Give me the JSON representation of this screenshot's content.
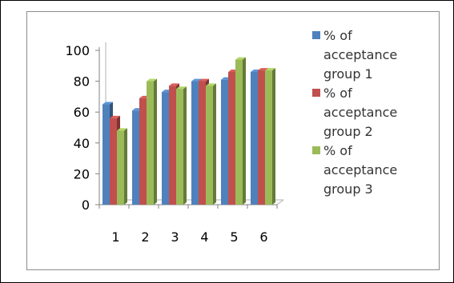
{
  "chart_data": {
    "type": "bar",
    "style": "3d-clustered-column",
    "categories": [
      "1",
      "2",
      "3",
      "4",
      "5",
      "6"
    ],
    "series": [
      {
        "name": "% of acceptance group 1",
        "color": "#4f81bd",
        "values": [
          65,
          61,
          73,
          80,
          81,
          86
        ]
      },
      {
        "name": "% of acceptance group 2",
        "color": "#c0504d",
        "values": [
          56,
          69,
          77,
          80,
          86,
          87
        ]
      },
      {
        "name": "% of acceptance group 3",
        "color": "#9bbb59",
        "values": [
          48,
          80,
          75,
          77,
          94,
          87
        ]
      }
    ],
    "yticks": [
      0,
      20,
      40,
      60,
      80,
      100
    ],
    "ylim": [
      0,
      100
    ],
    "grid": false,
    "legend_position": "right",
    "legend_lines": [
      [
        "% of",
        "acceptance",
        "group 1"
      ],
      [
        "% of",
        "acceptance",
        "group 2"
      ],
      [
        "% of",
        "acceptance",
        "group 3"
      ]
    ]
  }
}
